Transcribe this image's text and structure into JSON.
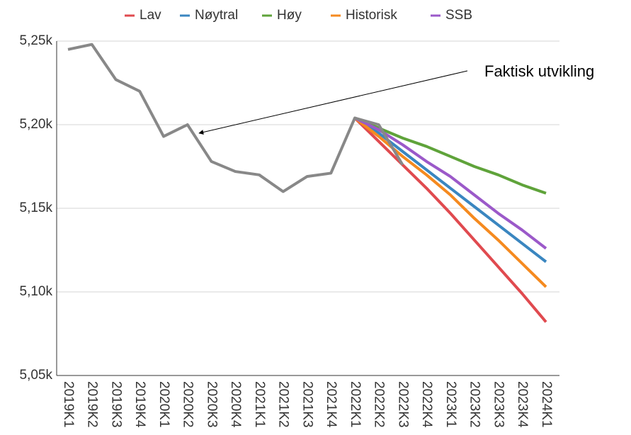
{
  "chart_data": {
    "type": "line",
    "categories": [
      "2019K1",
      "2019K2",
      "2019K3",
      "2019K4",
      "2020K1",
      "2020K2",
      "2020K3",
      "2020K4",
      "2021K1",
      "2021K2",
      "2021K3",
      "2021K4",
      "2022K1",
      "2022K2",
      "2022K3",
      "2022K4",
      "2023K1",
      "2023K2",
      "2023K3",
      "2023K4",
      "2024K1"
    ],
    "series": [
      {
        "color": "#888888",
        "values": [
          5245,
          5248,
          5227,
          5220,
          5193,
          5200,
          5178,
          5172,
          5170,
          5160,
          5169,
          5171,
          5204,
          5200,
          5176,
          null,
          null,
          null,
          null,
          null,
          null
        ]
      },
      {
        "name": "Lav",
        "color": "#e04a4f",
        "values": [
          null,
          null,
          null,
          null,
          null,
          null,
          null,
          null,
          null,
          null,
          null,
          null,
          5204,
          5190,
          5176,
          5162,
          5147,
          5131,
          5115,
          5099,
          5082
        ]
      },
      {
        "name": "Nøytral",
        "color": "#3a86c0",
        "values": [
          null,
          null,
          null,
          null,
          null,
          null,
          null,
          null,
          null,
          null,
          null,
          null,
          5204,
          5195,
          5184,
          5173,
          5162,
          5151,
          5140,
          5129,
          5118
        ]
      },
      {
        "name": "Høy",
        "color": "#5fa33a",
        "values": [
          null,
          null,
          null,
          null,
          null,
          null,
          null,
          null,
          null,
          null,
          null,
          null,
          5204,
          5198,
          5192,
          5187,
          5181,
          5175,
          5170,
          5164,
          5159
        ]
      },
      {
        "name": "Historisk",
        "color": "#f58a1f",
        "values": [
          null,
          null,
          null,
          null,
          null,
          null,
          null,
          null,
          null,
          null,
          null,
          null,
          5204,
          5193,
          5181,
          5170,
          5158,
          5144,
          5131,
          5117,
          5103
        ]
      },
      {
        "name": "SSB",
        "color": "#9b59c9",
        "values": [
          null,
          null,
          null,
          null,
          null,
          null,
          null,
          null,
          null,
          null,
          null,
          null,
          5204,
          5197,
          5188,
          5178,
          5169,
          5158,
          5147,
          5137,
          5126
        ]
      }
    ],
    "ylim": [
      5050,
      5250
    ],
    "yticks": [
      {
        "value": 5050,
        "label": "5,05k"
      },
      {
        "value": 5100,
        "label": "5,10k"
      },
      {
        "value": 5150,
        "label": "5,15k"
      },
      {
        "value": 5200,
        "label": "5,20k"
      },
      {
        "value": 5250,
        "label": "5,25k"
      }
    ],
    "grid": true,
    "legend": "top",
    "annotation": "Faktisk utvikling"
  }
}
